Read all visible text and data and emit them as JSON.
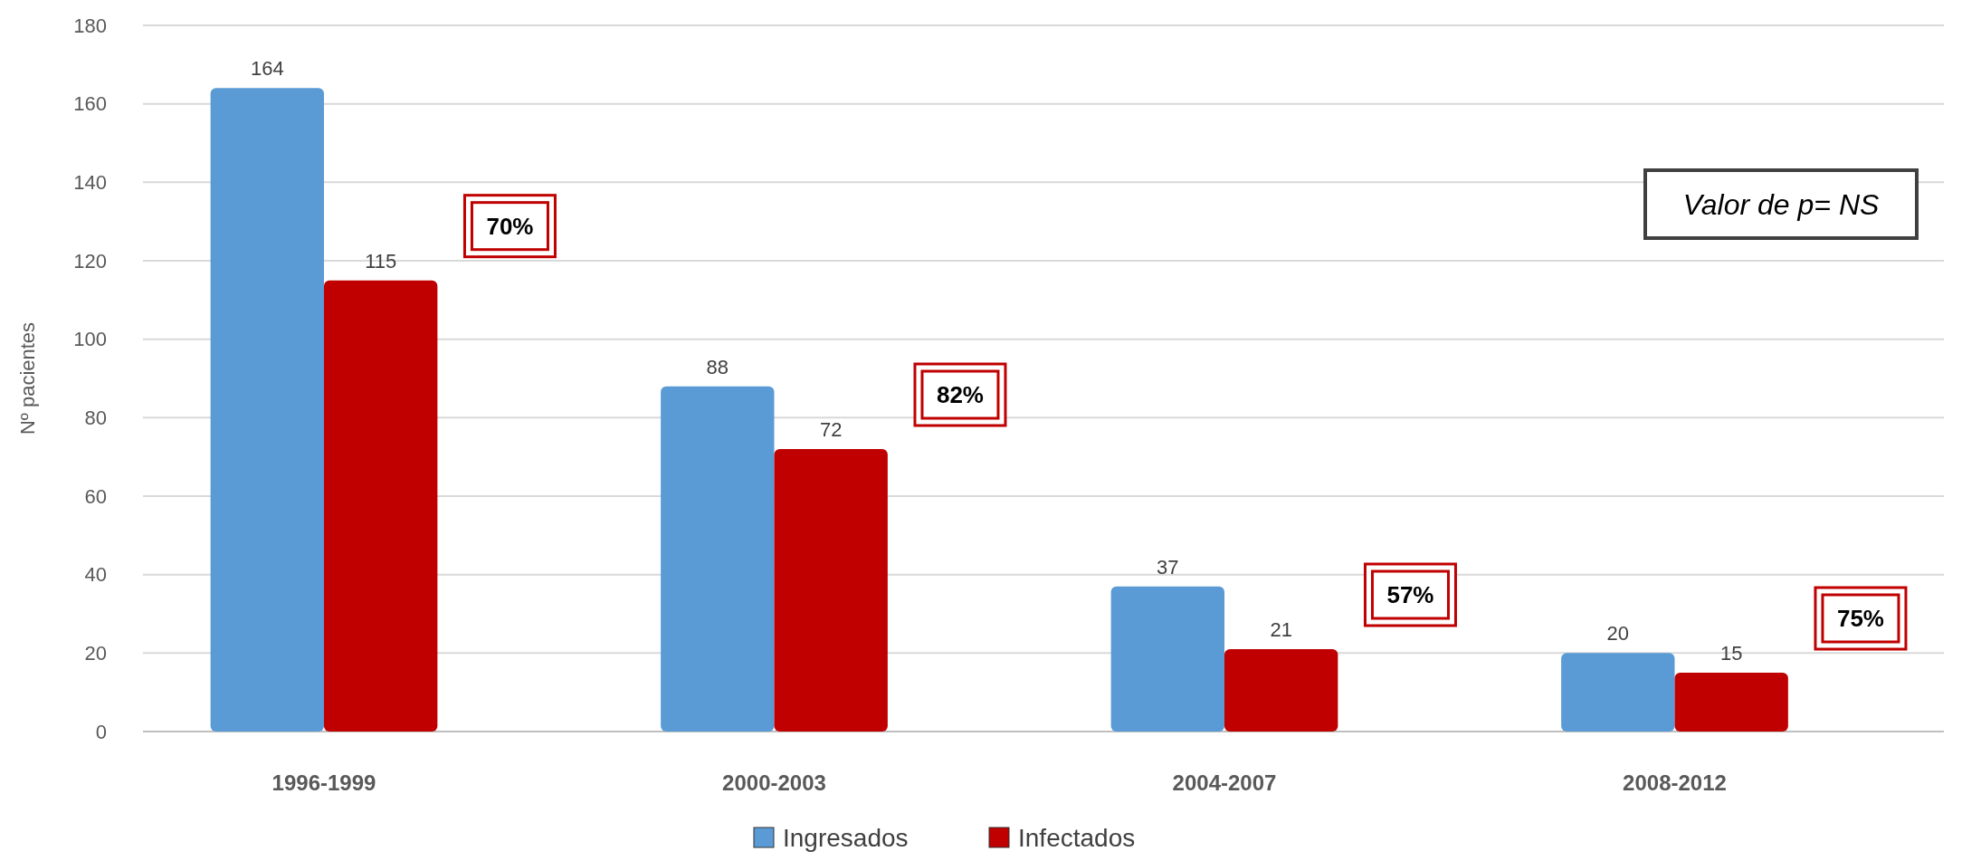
{
  "chart_data": {
    "type": "bar",
    "ylabel": "Nº pacientes",
    "categories": [
      "1996-1999",
      "2000-2003",
      "2004-2007",
      "2008-2012"
    ],
    "series": [
      {
        "name": "Ingresados",
        "color": "#5b9bd5",
        "values": [
          164,
          88,
          37,
          20
        ]
      },
      {
        "name": "Infectados",
        "color": "#c00000",
        "values": [
          115,
          72,
          21,
          15
        ]
      }
    ],
    "ylim": [
      0,
      180
    ],
    "yticks": [
      0,
      20,
      40,
      60,
      80,
      100,
      120,
      140,
      160,
      180
    ],
    "grid": "y",
    "legend": "bottom",
    "data_labels": true,
    "annotations": [
      "70%",
      "82%",
      "57%",
      "75%",
      "Valor de p= NS"
    ]
  }
}
